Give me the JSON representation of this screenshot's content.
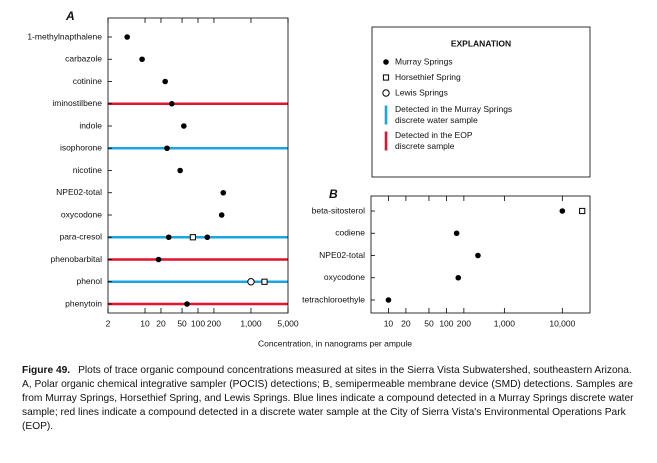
{
  "chart_data": [
    {
      "type": "dot",
      "label": "A",
      "categories": [
        "1-methylnapthalene",
        "carbazole",
        "cotinine",
        "iminostilbene",
        "indole",
        "isophorone",
        "nicotine",
        "NPE02-total",
        "oxycodone",
        "para-cresol",
        "phenobarbital",
        "phenol",
        "phenytoin"
      ],
      "series": [
        {
          "name": "Murray Springs",
          "color": "#000000",
          "marker": "filled-circle",
          "values": [
            4.6,
            8.8,
            24,
            32,
            54,
            26,
            46,
            300,
            280,
            [
              28,
              150
            ],
            18,
            null,
            62
          ]
        },
        {
          "name": "Horsethief Spring",
          "color": "#000000",
          "marker": "open-square",
          "values": [
            null,
            null,
            null,
            null,
            null,
            null,
            null,
            null,
            null,
            80,
            null,
            1800,
            null
          ]
        },
        {
          "name": "Lewis Springs",
          "color": "#000000",
          "marker": "open-circle",
          "values": [
            null,
            null,
            null,
            null,
            null,
            null,
            null,
            null,
            null,
            null,
            null,
            1000,
            null
          ]
        }
      ],
      "highlight": [
        null,
        null,
        null,
        1,
        null,
        0,
        null,
        null,
        null,
        0,
        1,
        0,
        1
      ],
      "line_legend": [
        {
          "label": [
            "Detected in the Murray Springs",
            "discrete water sample"
          ],
          "color": "#1ba6e0"
        },
        {
          "label": [
            "Detected in the EOP",
            "discrete sample"
          ],
          "color": "#e0142f"
        }
      ],
      "legend_title": "EXPLANATION",
      "xlabel": "Concentration, in nanograms per ampule",
      "log_x": true,
      "xlim": [
        2,
        5000
      ],
      "xticks": [
        2,
        10,
        20,
        50,
        100,
        200,
        {
          "value": 1000,
          "label": "1,000"
        },
        {
          "value": 5000,
          "label": "5,000"
        }
      ]
    },
    {
      "type": "dot",
      "label": "B",
      "categories": [
        "beta-sitosterol",
        "codiene",
        "NPE02-total",
        "oxycodone",
        "tetrachloroethyle"
      ],
      "series": [
        {
          "name": "Murray Springs",
          "color": "#000000",
          "marker": "filled-circle",
          "values": [
            10000,
            150,
            350,
            160,
            10
          ]
        },
        {
          "name": "Horsethief Spring",
          "color": "#000000",
          "marker": "open-square",
          "values": [
            22000,
            null,
            null,
            null,
            null
          ]
        }
      ],
      "log_x": true,
      "xlim": [
        5,
        30000
      ],
      "xticks": [
        10,
        20,
        50,
        100,
        200,
        {
          "value": 1000,
          "label": "1,000"
        },
        {
          "value": 10000,
          "label": "10,000"
        }
      ]
    }
  ],
  "caption": {
    "label": "Figure 49.",
    "text": "Plots of trace organic compound concentrations measured at sites in the Sierra Vista Subwatershed, southeastern Arizona. A, Polar organic chemical integrative sampler (POCIS) detections; B, semipermeable membrane device (SMD) detections. Samples are from Murray Springs, Horsethief Spring, and Lewis Springs. Blue lines indicate a compound detected in a Murray Springs discrete water sample; red lines indicate a compound detected in a discrete water sample at the City of Sierra Vista's Environmental Operations Park (EOP)."
  }
}
